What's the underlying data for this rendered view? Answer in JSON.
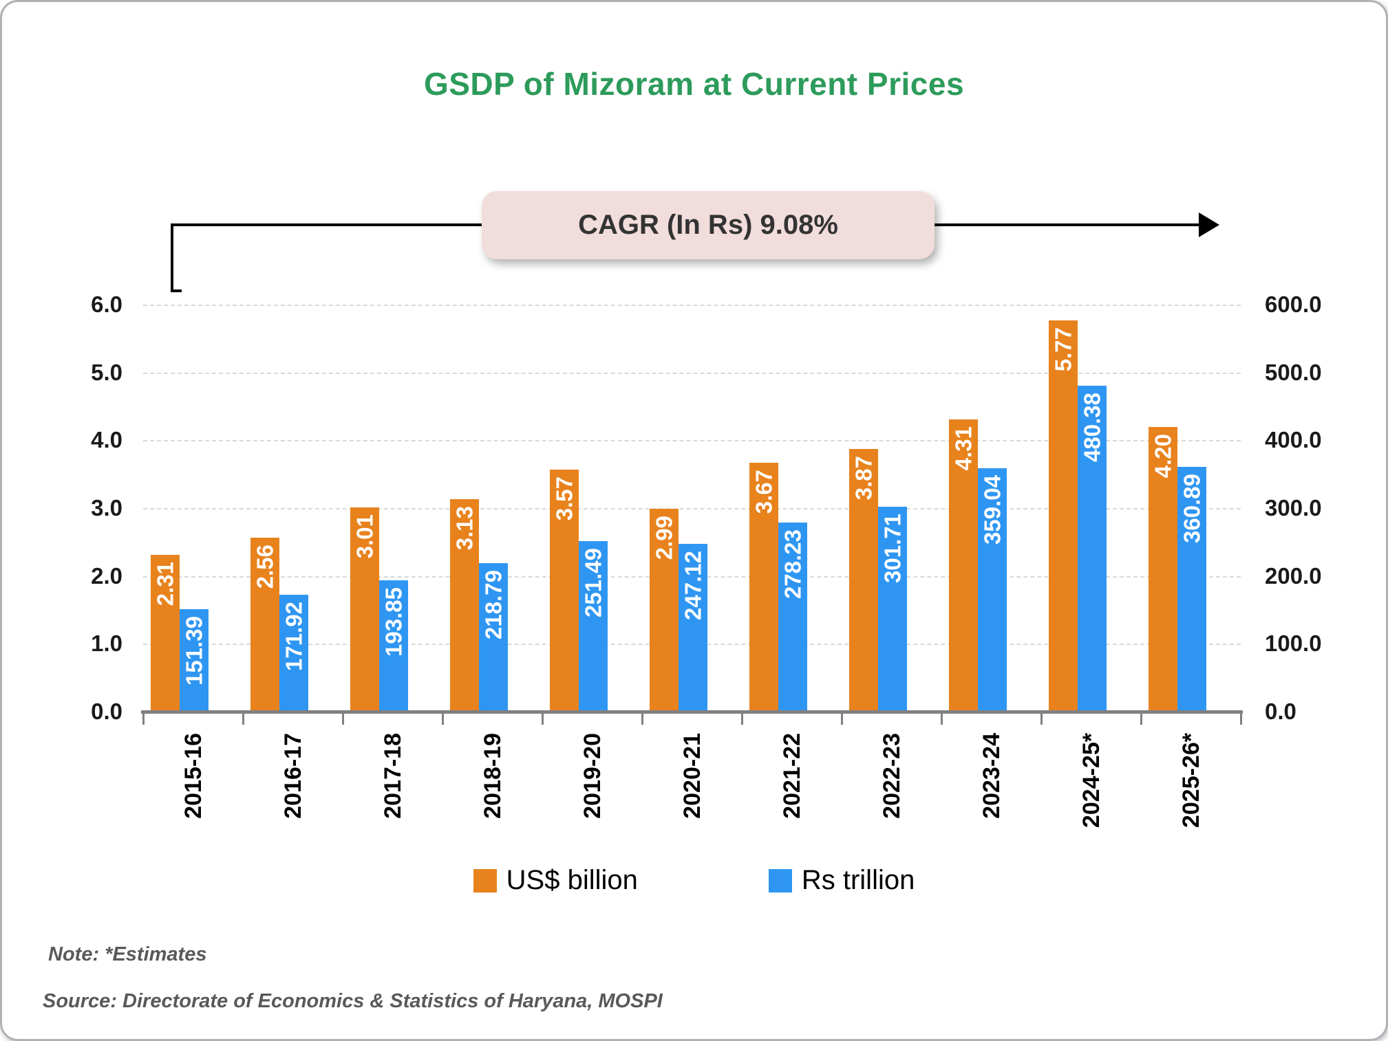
{
  "title": "GSDP of Mizoram at Current Prices",
  "cagr": {
    "label": "CAGR (In Rs) 9.08%",
    "box_color": "#f1dddb"
  },
  "note": "Note: *Estimates",
  "source": "Source: Directorate of Economics & Statistics of Haryana, MOSPI",
  "legend": [
    {
      "label": "US$ billion",
      "color": "#e8821d"
    },
    {
      "label": "Rs trillion",
      "color": "#2e96f2"
    }
  ],
  "left_axis_ticks": [
    "6.0",
    "5.0",
    "4.0",
    "3.0",
    "2.0",
    "1.0",
    "0.0"
  ],
  "right_axis_ticks": [
    "600.0",
    "500.0",
    "400.0",
    "300.0",
    "200.0",
    "100.0",
    "0.0"
  ],
  "colors": {
    "title_green": "#2d9b5b",
    "axis_gray": "#808080",
    "grid_gray": "#d9d9d9"
  },
  "chart_data": {
    "type": "bar",
    "title": "GSDP of Mizoram at Current Prices",
    "categories": [
      "2015-16",
      "2016-17",
      "2017-18",
      "2018-19",
      "2019-20",
      "2020-21",
      "2021-22",
      "2022-23",
      "2023-24",
      "2024-25*",
      "2025-26*"
    ],
    "series": [
      {
        "name": "US$ billion",
        "axis": "left",
        "color": "#e8821d",
        "ylim": [
          0,
          6
        ],
        "values": [
          2.31,
          2.56,
          3.01,
          3.13,
          3.57,
          2.99,
          3.67,
          3.87,
          4.31,
          5.77,
          4.2
        ]
      },
      {
        "name": "Rs trillion",
        "axis": "right",
        "color": "#2e96f2",
        "ylim": [
          0,
          600
        ],
        "values": [
          151.39,
          171.92,
          193.85,
          218.79,
          251.49,
          247.12,
          278.23,
          301.71,
          359.04,
          480.38,
          360.89
        ]
      }
    ],
    "grid": true,
    "legend_position": "bottom",
    "data_labels": "inside-end, rotated 90deg bottom-to-top, white bold"
  }
}
